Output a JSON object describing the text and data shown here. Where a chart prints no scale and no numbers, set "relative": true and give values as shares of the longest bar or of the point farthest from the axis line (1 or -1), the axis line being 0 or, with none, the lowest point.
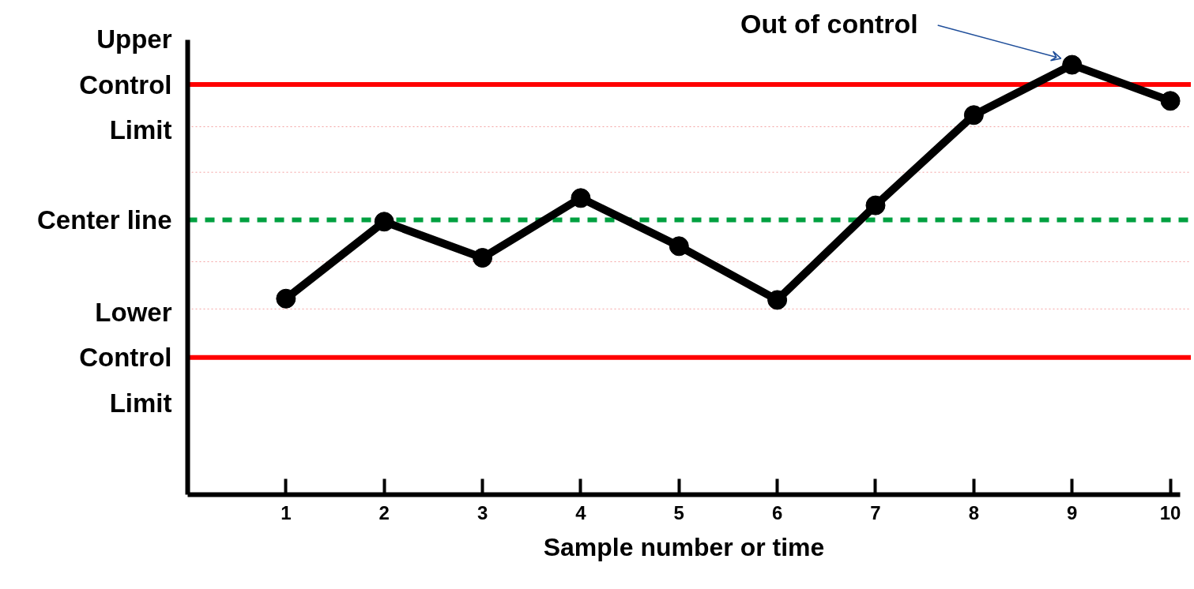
{
  "chart_data": {
    "type": "line",
    "relative": true,
    "xlabel": "Sample number or time",
    "x": [
      1,
      2,
      3,
      4,
      5,
      6,
      7,
      8,
      9,
      10
    ],
    "xlim": [
      0,
      10.1
    ],
    "xticks": [
      1,
      2,
      3,
      4,
      5,
      6,
      7,
      8,
      9,
      10
    ],
    "series": [
      {
        "color": "#000000",
        "values": [
          0.456,
          0.635,
          0.551,
          0.69,
          0.578,
          0.453,
          0.673,
          0.883,
          1,
          0.916
        ]
      }
    ],
    "marker": "circle",
    "line_style": "solid",
    "grid": false,
    "ref_lines": [
      {
        "axis": "y",
        "value": 0.954,
        "label": "Upper Control Limit",
        "color": "#ff0000",
        "line_style": "solid"
      },
      {
        "axis": "y",
        "value": 0.639,
        "label": "Center line",
        "color": "#00a040",
        "line_style": "dashed"
      },
      {
        "axis": "y",
        "value": 0.319,
        "label": "Lower Control Limit",
        "color": "#ff0000",
        "line_style": "solid"
      },
      {
        "axis": "y",
        "value": 0.856,
        "label": null,
        "color": "#f4a0a0",
        "line_style": "dotted"
      },
      {
        "axis": "y",
        "value": 0.75,
        "label": null,
        "color": "#f4a0a0",
        "line_style": "dotted"
      },
      {
        "axis": "y",
        "value": 0.542,
        "label": null,
        "color": "#f4a0a0",
        "line_style": "dotted"
      },
      {
        "axis": "y",
        "value": 0.432,
        "label": null,
        "color": "#f4a0a0",
        "line_style": "dotted"
      }
    ],
    "annotations": [
      "Out of control"
    ]
  }
}
